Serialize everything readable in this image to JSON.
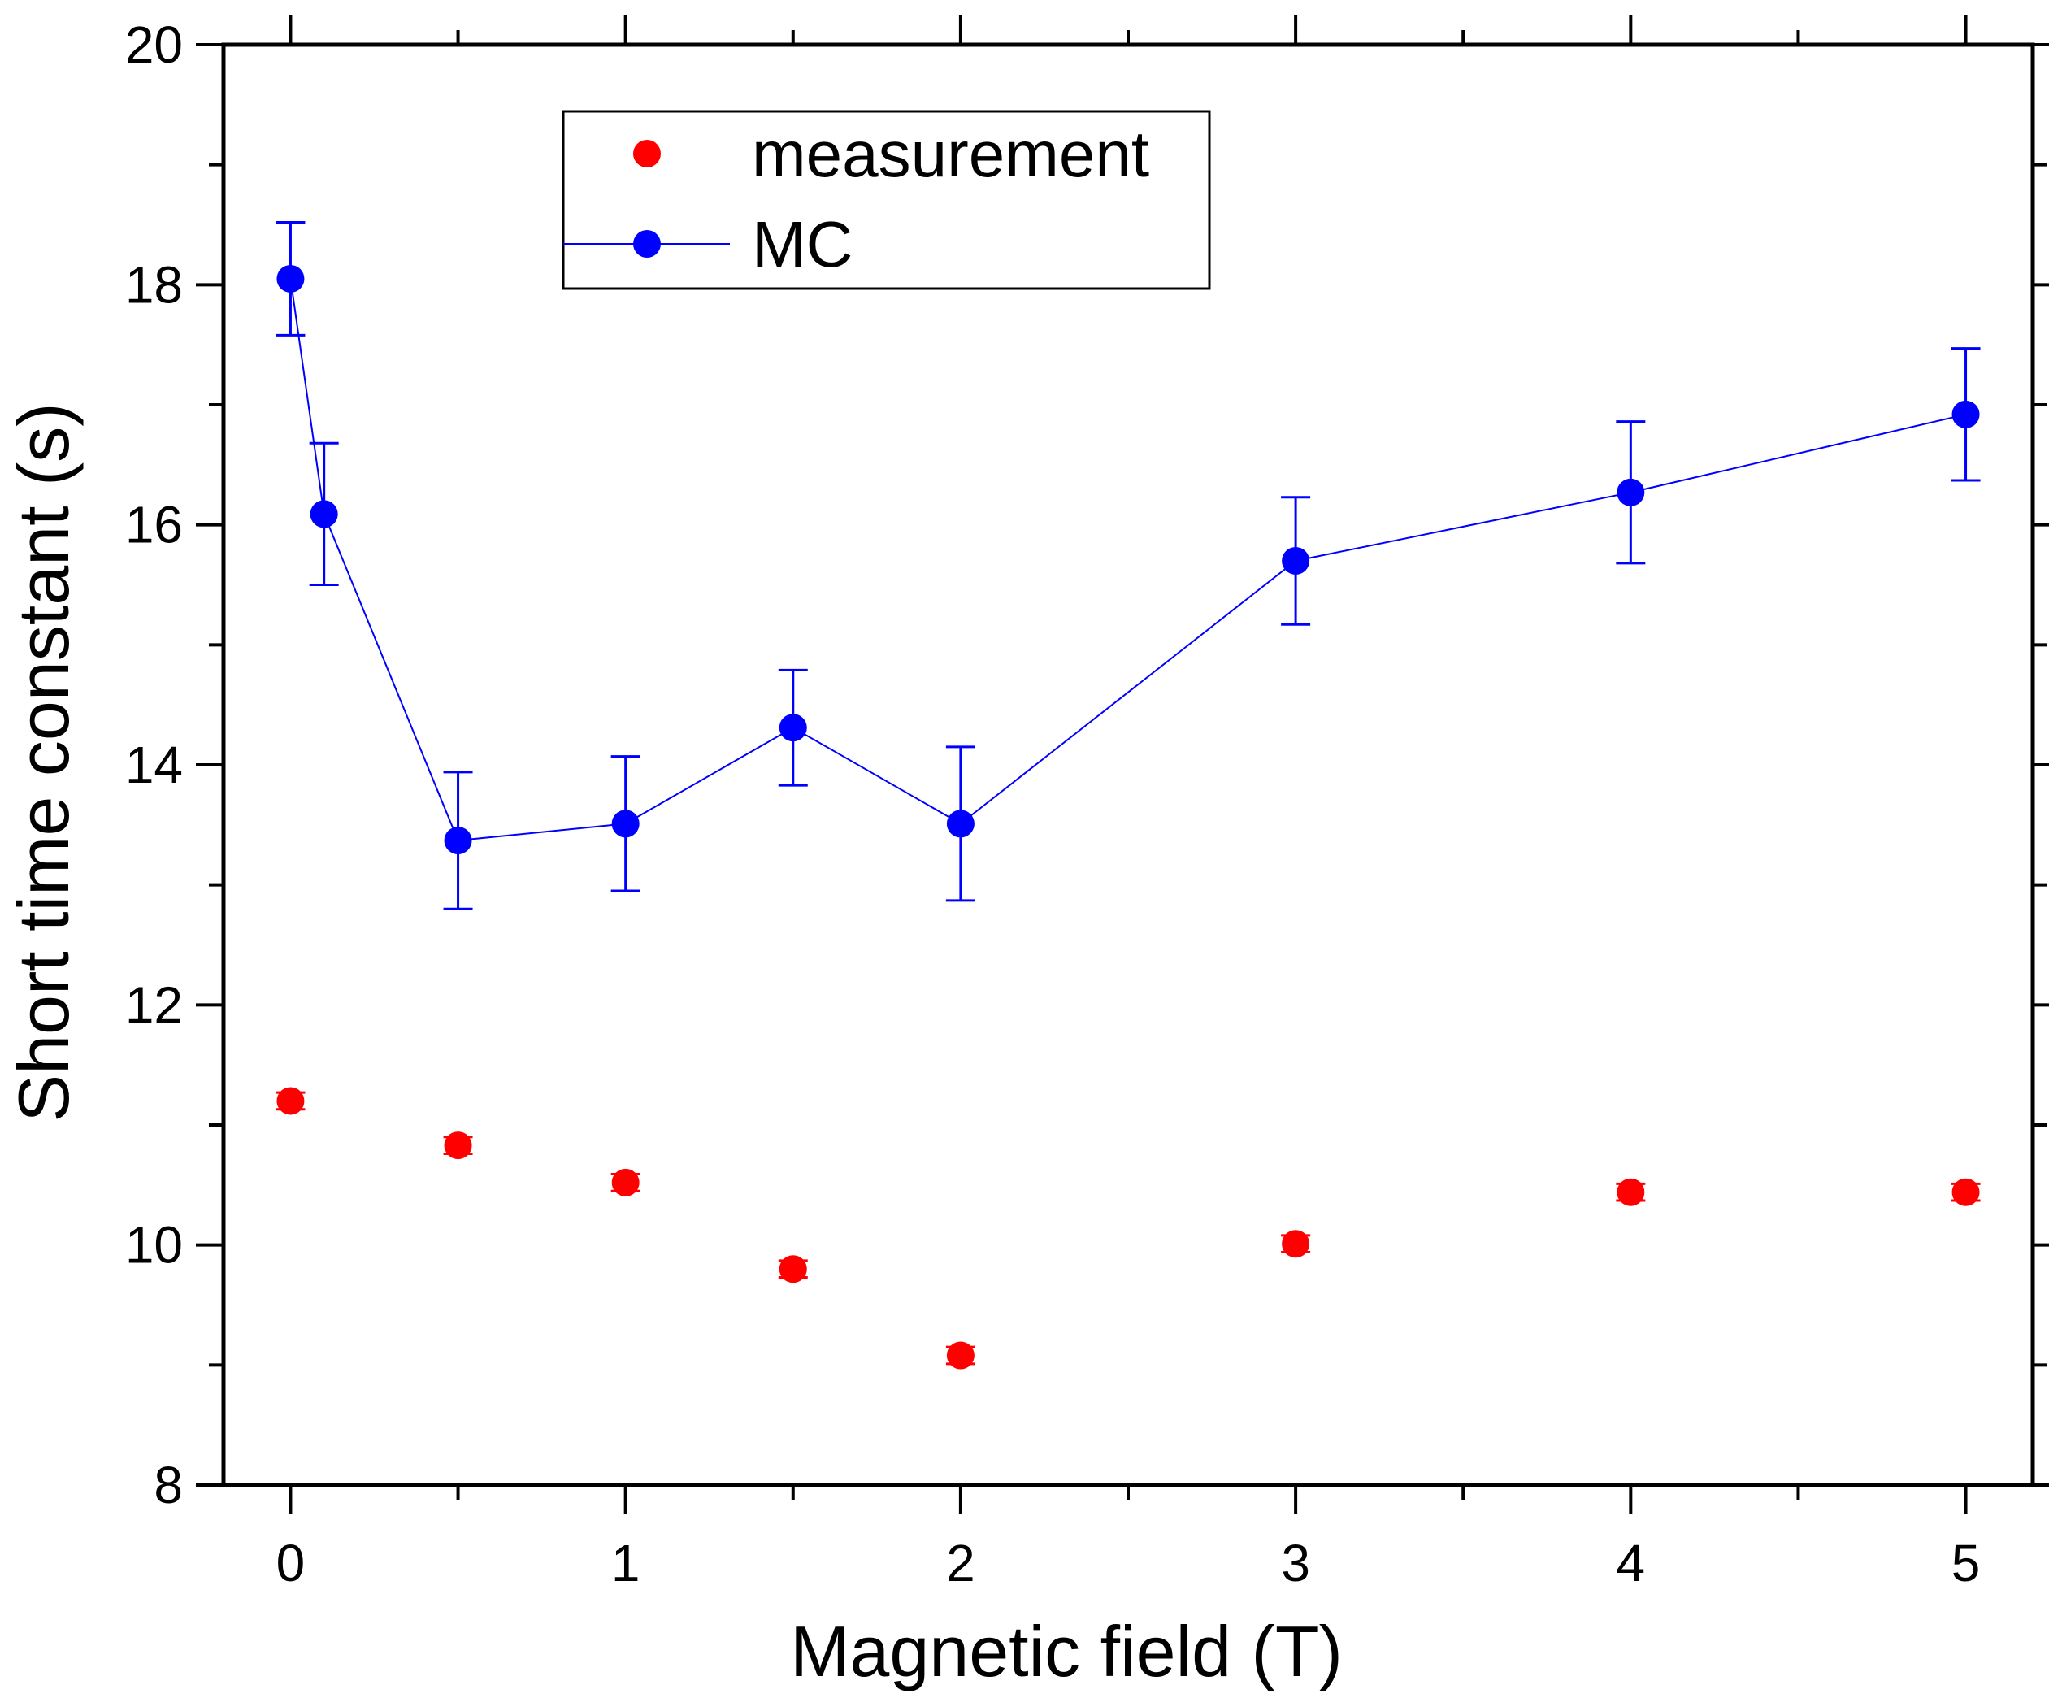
{
  "chart_data": {
    "type": "scatter",
    "title": "",
    "xlabel": "Magnetic field (T)",
    "ylabel": "Short time constant (s)",
    "xlim": [
      -0.2,
      5.2
    ],
    "ylim": [
      8,
      20
    ],
    "x_ticks": [
      0,
      1,
      2,
      3,
      4,
      5
    ],
    "x_tick_labels": [
      "0",
      "1",
      "2",
      "3",
      "4",
      "5"
    ],
    "y_ticks": [
      8,
      10,
      12,
      14,
      16,
      18,
      20
    ],
    "y_tick_labels": [
      "8",
      "10",
      "12",
      "14",
      "16",
      "18",
      "20"
    ],
    "grid": false,
    "legend_position": "top-left",
    "series": [
      {
        "name": "measurement",
        "color": "#ff0000",
        "line": false,
        "points": [
          {
            "x": 0,
            "y": 11.2,
            "err": 0.07
          },
          {
            "x": 0.5,
            "y": 10.83,
            "err": 0.07
          },
          {
            "x": 1,
            "y": 10.52,
            "err": 0.07
          },
          {
            "x": 1.5,
            "y": 9.8,
            "err": 0.07
          },
          {
            "x": 2,
            "y": 9.08,
            "err": 0.07
          },
          {
            "x": 3,
            "y": 10.01,
            "err": 0.07
          },
          {
            "x": 4,
            "y": 10.44,
            "err": 0.07
          },
          {
            "x": 5,
            "y": 10.44,
            "err": 0.07
          }
        ]
      },
      {
        "name": "MC",
        "color": "#0000ff",
        "line": true,
        "points": [
          {
            "x": 0,
            "y": 18.05,
            "err": 0.47
          },
          {
            "x": 0.1,
            "y": 16.09,
            "err": 0.59
          },
          {
            "x": 0.5,
            "y": 13.37,
            "err": 0.57
          },
          {
            "x": 1,
            "y": 13.51,
            "err": 0.56
          },
          {
            "x": 1.5,
            "y": 14.31,
            "err": 0.48
          },
          {
            "x": 2,
            "y": 13.51,
            "err": 0.64
          },
          {
            "x": 3,
            "y": 15.7,
            "err": 0.53
          },
          {
            "x": 4,
            "y": 16.27,
            "err": 0.59
          },
          {
            "x": 5,
            "y": 16.92,
            "err": 0.55
          }
        ]
      }
    ]
  }
}
